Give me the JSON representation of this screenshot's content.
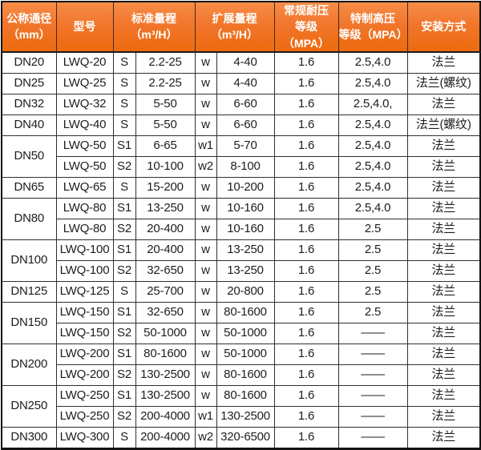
{
  "colors": {
    "header_bg_top": "#f78d48",
    "header_bg_bottom": "#ed6b0e",
    "header_text": "#ffffff",
    "grid_line": "#2f2f2f",
    "body_text": "#1d1d1d"
  },
  "table": {
    "headers": [
      "公称通径\n（mm）",
      "型号",
      "标准量程\n（m³/H）",
      "扩展量程\n（m³/H）",
      "常规耐压\n等级（MPA）",
      "特制高压\n等级（MPA）",
      "安装方式"
    ],
    "rows": [
      {
        "dn": "DN20",
        "dn_span": 1,
        "model": "LWQ-20",
        "s_grade": "S",
        "s_range": "2.2-25",
        "w_grade": "w",
        "w_range": "4-40",
        "normal_mpa": "1.6",
        "high_mpa": "2.5,4.0",
        "install": "法兰"
      },
      {
        "dn": "DN25",
        "dn_span": 1,
        "model": "LWQ-25",
        "s_grade": "S",
        "s_range": "2.2-25",
        "w_grade": "w",
        "w_range": "4-40",
        "normal_mpa": "1.6",
        "high_mpa": "2.5,4.0",
        "install": "法兰(螺纹)"
      },
      {
        "dn": "DN32",
        "dn_span": 1,
        "model": "LWQ-32",
        "s_grade": "S",
        "s_range": "5-50",
        "w_grade": "w",
        "w_range": "6-60",
        "normal_mpa": "1.6",
        "high_mpa": "2.5,4.0,",
        "install": "法兰"
      },
      {
        "dn": "DN40",
        "dn_span": 1,
        "model": "LWQ-40",
        "s_grade": "S",
        "s_range": "5-50",
        "w_grade": "w",
        "w_range": "6-60",
        "normal_mpa": "1.6",
        "high_mpa": "2.5,4.0",
        "install": "法兰(螺纹)"
      },
      {
        "dn": "DN50",
        "dn_span": 2,
        "model": "LWQ-50",
        "s_grade": "S1",
        "s_range": "6-65",
        "w_grade": "w1",
        "w_range": "5-70",
        "normal_mpa": "1.6",
        "high_mpa": "2.5,4.0",
        "install": "法兰"
      },
      {
        "dn": null,
        "model": "LWQ-50",
        "s_grade": "S2",
        "s_range": "10-100",
        "w_grade": "w2",
        "w_range": "8-100",
        "normal_mpa": "1.6",
        "high_mpa": "2.5,4.0",
        "install": "法兰"
      },
      {
        "dn": "DN65",
        "dn_span": 1,
        "model": "LWQ-65",
        "s_grade": "S",
        "s_range": "15-200",
        "w_grade": "w",
        "w_range": "10-200",
        "normal_mpa": "1.6",
        "high_mpa": "2.5,4.0",
        "install": "法兰"
      },
      {
        "dn": "DN80",
        "dn_span": 2,
        "model": "LWQ-80",
        "s_grade": "S1",
        "s_range": "13-250",
        "w_grade": "w",
        "w_range": "10-160",
        "normal_mpa": "1.6",
        "high_mpa": "2.5,4.0",
        "install": "法兰"
      },
      {
        "dn": null,
        "model": "LWQ-80",
        "s_grade": "S2",
        "s_range": "20-400",
        "w_grade": "w",
        "w_range": "10-160",
        "normal_mpa": "1.6",
        "high_mpa": "2.5",
        "install": "法兰"
      },
      {
        "dn": "DN100",
        "dn_span": 2,
        "model": "LWQ-100",
        "s_grade": "S1",
        "s_range": "20-400",
        "w_grade": "w",
        "w_range": "13-250",
        "normal_mpa": "1.6",
        "high_mpa": "2.5",
        "install": "法兰"
      },
      {
        "dn": null,
        "model": "LWQ-100",
        "s_grade": "S2",
        "s_range": "32-650",
        "w_grade": "w",
        "w_range": "13-250",
        "normal_mpa": "1.6",
        "high_mpa": "2.5",
        "install": "法兰"
      },
      {
        "dn": "DN125",
        "dn_span": 1,
        "model": "LWQ-125",
        "s_grade": "S",
        "s_range": "25-700",
        "w_grade": "w",
        "w_range": "20-800",
        "normal_mpa": "1.6",
        "high_mpa": "2.5",
        "install": "法兰"
      },
      {
        "dn": "DN150",
        "dn_span": 2,
        "model": "LWQ-150",
        "s_grade": "S1",
        "s_range": "32-650",
        "w_grade": "w",
        "w_range": "80-1600",
        "normal_mpa": "1.6",
        "high_mpa": "2.5",
        "install": "法兰"
      },
      {
        "dn": null,
        "model": "LWQ-150",
        "s_grade": "S2",
        "s_range": "50-1000",
        "w_grade": "w",
        "w_range": "50-1000",
        "normal_mpa": "1.6",
        "high_mpa": "——",
        "install": "法兰"
      },
      {
        "dn": "DN200",
        "dn_span": 2,
        "model": "LWQ-200",
        "s_grade": "S1",
        "s_range": "80-1600",
        "w_grade": "w",
        "w_range": "50-1000",
        "normal_mpa": "1.6",
        "high_mpa": "——",
        "install": "法兰"
      },
      {
        "dn": null,
        "model": "LWQ-200",
        "s_grade": "S2",
        "s_range": "130-2500",
        "w_grade": "w",
        "w_range": "80-1600",
        "normal_mpa": "1.6",
        "high_mpa": "——",
        "install": "法兰"
      },
      {
        "dn": "DN250",
        "dn_span": 2,
        "model": "LWQ-250",
        "s_grade": "S1",
        "s_range": "130-2500",
        "w_grade": "w",
        "w_range": "80-1600",
        "normal_mpa": "1.6",
        "high_mpa": "——",
        "install": "法兰"
      },
      {
        "dn": null,
        "model": "LWQ-250",
        "s_grade": "S2",
        "s_range": "200-4000",
        "w_grade": "w1",
        "w_range": "130-2500",
        "normal_mpa": "1.6",
        "high_mpa": "——",
        "install": "法兰"
      },
      {
        "dn": "DN300",
        "dn_span": 1,
        "model": "LWQ-300",
        "s_grade": "S",
        "s_range": "200-4000",
        "w_grade": "w2",
        "w_range": "320-6500",
        "normal_mpa": "1.6",
        "high_mpa": "——",
        "install": "法兰"
      }
    ]
  }
}
